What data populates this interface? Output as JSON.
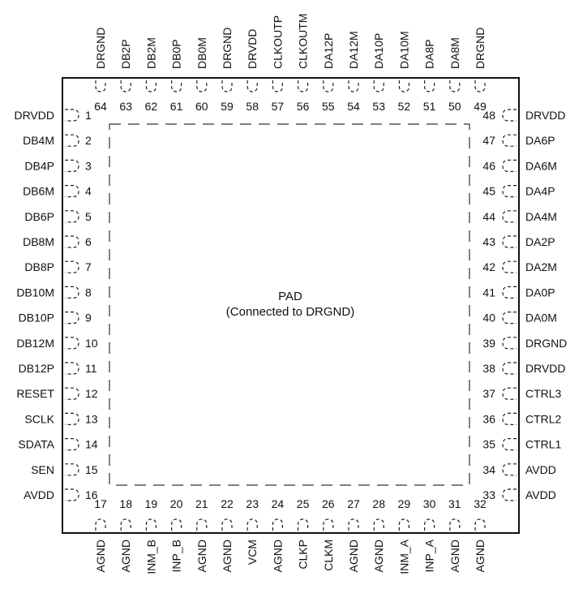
{
  "center": {
    "title": "PAD",
    "subtitle": "(Connected to DRGND)"
  },
  "left_pins": [
    {
      "num": "1",
      "name": "DRVDD"
    },
    {
      "num": "2",
      "name": "DB4M"
    },
    {
      "num": "3",
      "name": "DB4P"
    },
    {
      "num": "4",
      "name": "DB6M"
    },
    {
      "num": "5",
      "name": "DB6P"
    },
    {
      "num": "6",
      "name": "DB8M"
    },
    {
      "num": "7",
      "name": "DB8P"
    },
    {
      "num": "8",
      "name": "DB10M"
    },
    {
      "num": "9",
      "name": "DB10P"
    },
    {
      "num": "10",
      "name": "DB12M"
    },
    {
      "num": "11",
      "name": "DB12P"
    },
    {
      "num": "12",
      "name": "RESET"
    },
    {
      "num": "13",
      "name": "SCLK"
    },
    {
      "num": "14",
      "name": "SDATA"
    },
    {
      "num": "15",
      "name": "SEN"
    },
    {
      "num": "16",
      "name": "AVDD"
    }
  ],
  "right_pins": [
    {
      "num": "48",
      "name": "DRVDD"
    },
    {
      "num": "47",
      "name": "DA6P"
    },
    {
      "num": "46",
      "name": "DA6M"
    },
    {
      "num": "45",
      "name": "DA4P"
    },
    {
      "num": "44",
      "name": "DA4M"
    },
    {
      "num": "43",
      "name": "DA2P"
    },
    {
      "num": "42",
      "name": "DA2M"
    },
    {
      "num": "41",
      "name": "DA0P"
    },
    {
      "num": "40",
      "name": "DA0M"
    },
    {
      "num": "39",
      "name": "DRGND"
    },
    {
      "num": "38",
      "name": "DRVDD"
    },
    {
      "num": "37",
      "name": "CTRL3"
    },
    {
      "num": "36",
      "name": "CTRL2"
    },
    {
      "num": "35",
      "name": "CTRL1"
    },
    {
      "num": "34",
      "name": "AVDD"
    },
    {
      "num": "33",
      "name": "AVDD"
    }
  ],
  "top_pins": [
    {
      "num": "64",
      "name": "DRGND"
    },
    {
      "num": "63",
      "name": "DB2P"
    },
    {
      "num": "62",
      "name": "DB2M"
    },
    {
      "num": "61",
      "name": "DB0P"
    },
    {
      "num": "60",
      "name": "DB0M"
    },
    {
      "num": "59",
      "name": "DRGND"
    },
    {
      "num": "58",
      "name": "DRVDD"
    },
    {
      "num": "57",
      "name": "CLKOUTP"
    },
    {
      "num": "56",
      "name": "CLKOUTM"
    },
    {
      "num": "55",
      "name": "DA12P"
    },
    {
      "num": "54",
      "name": "DA12M"
    },
    {
      "num": "53",
      "name": "DA10P"
    },
    {
      "num": "52",
      "name": "DA10M"
    },
    {
      "num": "51",
      "name": "DA8P"
    },
    {
      "num": "50",
      "name": "DA8M"
    },
    {
      "num": "49",
      "name": "DRGND"
    }
  ],
  "bottom_pins": [
    {
      "num": "17",
      "name": "AGND"
    },
    {
      "num": "18",
      "name": "AGND"
    },
    {
      "num": "19",
      "name": "INM_B"
    },
    {
      "num": "20",
      "name": "INP_B"
    },
    {
      "num": "21",
      "name": "AGND"
    },
    {
      "num": "22",
      "name": "AGND"
    },
    {
      "num": "23",
      "name": "VCM"
    },
    {
      "num": "24",
      "name": "AGND"
    },
    {
      "num": "25",
      "name": "CLKP"
    },
    {
      "num": "26",
      "name": "CLKM"
    },
    {
      "num": "27",
      "name": "AGND"
    },
    {
      "num": "28",
      "name": "AGND"
    },
    {
      "num": "29",
      "name": "INM_A"
    },
    {
      "num": "30",
      "name": "INP_A"
    },
    {
      "num": "31",
      "name": "AGND"
    },
    {
      "num": "32",
      "name": "AGND"
    }
  ]
}
